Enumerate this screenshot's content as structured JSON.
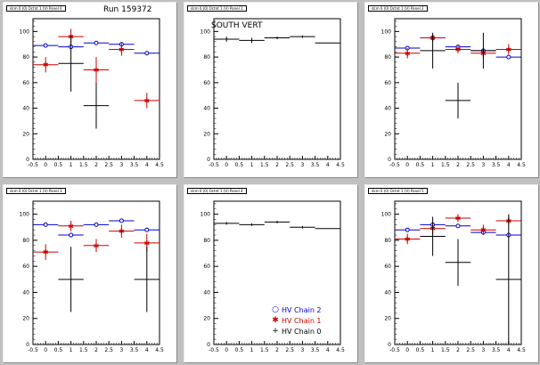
{
  "canvas": {
    "background": "#c0c0c0",
    "colors": {
      "chain2": "#0000cc",
      "chain1": "#cc0000",
      "chain0": "#000000"
    }
  },
  "run_label": "Run 159372",
  "south_vert_label": "SOUTH VERT",
  "legend": {
    "items": [
      {
        "label": "HV Chain 2",
        "marker": "open-circle",
        "color": "#0000cc"
      },
      {
        "label": "HV Chain 1",
        "marker": "star",
        "color": "#cc0000"
      },
      {
        "label": "HV Chain 0",
        "marker": "cross",
        "color": "#000000"
      }
    ]
  },
  "chart_data": [
    {
      "type": "scatter",
      "title": "dcm 0 (0) Octnt 1 (V) Panel 0",
      "xlim": [
        -0.5,
        4.5
      ],
      "ylim": [
        0,
        110
      ],
      "xticks": [
        "-0.5",
        "0",
        "0.5",
        "1",
        "1.5",
        "2",
        "2.5",
        "3",
        "3.5",
        "4",
        "4.5"
      ],
      "yticks": [
        "0",
        "20",
        "40",
        "60",
        "80",
        "100"
      ],
      "series": [
        {
          "color": "#0000cc",
          "marker": "open-circle",
          "points": [
            [
              0,
              89,
              0.5,
              0
            ],
            [
              1,
              88,
              0.5,
              0
            ],
            [
              2,
              91,
              0.5,
              0
            ],
            [
              3,
              90,
              0.5,
              1
            ],
            [
              4,
              83,
              0.5,
              0
            ]
          ]
        },
        {
          "color": "#cc0000",
          "marker": "star",
          "points": [
            [
              0,
              74,
              0.5,
              6
            ],
            [
              1,
              96,
              0.5,
              6
            ],
            [
              2,
              70,
              0.5,
              10
            ],
            [
              3,
              86,
              0.5,
              5
            ],
            [
              4,
              46,
              0.5,
              6
            ]
          ]
        },
        {
          "color": "#000000",
          "marker": "cross",
          "points": [
            [
              1,
              75,
              0.5,
              22
            ],
            [
              2,
              42,
              0.5,
              18
            ]
          ]
        }
      ]
    },
    {
      "type": "scatter",
      "title": "dcm 0 (0) Octnt 1 (V) Panel 1",
      "xlim": [
        -0.5,
        4.5
      ],
      "ylim": [
        0,
        110
      ],
      "xticks": [
        "-0.5",
        "0",
        "0.5",
        "1",
        "1.5",
        "2",
        "2.5",
        "3",
        "3.5",
        "4",
        "4.5"
      ],
      "yticks": [
        "0",
        "20",
        "40",
        "60",
        "80",
        "100"
      ],
      "series": [
        {
          "color": "#000000",
          "marker": "cross",
          "points": [
            [
              0,
              94,
              0.5,
              2
            ],
            [
              1,
              93,
              0.5,
              2
            ],
            [
              2,
              95,
              0.5,
              1
            ],
            [
              3,
              96,
              0.5,
              1
            ],
            [
              4,
              91,
              0.5,
              0
            ]
          ]
        }
      ]
    },
    {
      "type": "scatter",
      "title": "dcm 0 (0) Octnt 1 (V) Panel 2",
      "xlim": [
        -0.5,
        4.5
      ],
      "ylim": [
        0,
        110
      ],
      "xticks": [
        "-0.5",
        "0",
        "0.5",
        "1",
        "1.5",
        "2",
        "2.5",
        "3",
        "3.5",
        "4",
        "4.5"
      ],
      "yticks": [
        "0",
        "20",
        "40",
        "60",
        "80",
        "100"
      ],
      "series": [
        {
          "color": "#0000cc",
          "marker": "open-circle",
          "points": [
            [
              0,
              87,
              0.5,
              0
            ],
            [
              1,
              95,
              0.5,
              0
            ],
            [
              2,
              88,
              0.5,
              0
            ],
            [
              3,
              85,
              0.5,
              0
            ],
            [
              4,
              80,
              0.5,
              0
            ]
          ]
        },
        {
          "color": "#cc0000",
          "marker": "star",
          "points": [
            [
              0,
              83,
              0.5,
              4
            ],
            [
              1,
              95,
              0.5,
              3
            ],
            [
              2,
              86,
              0.5,
              3
            ],
            [
              3,
              83,
              0.5,
              4
            ],
            [
              4,
              86,
              0.5,
              4
            ]
          ]
        },
        {
          "color": "#000000",
          "marker": "cross",
          "points": [
            [
              1,
              85,
              0.5,
              14
            ],
            [
              2,
              46,
              0.5,
              14
            ],
            [
              3,
              85,
              0.5,
              14
            ]
          ]
        }
      ]
    },
    {
      "type": "scatter",
      "title": "dcm 0 (0) Octnt 1 (V) Panel 3",
      "xlim": [
        -0.5,
        4.5
      ],
      "ylim": [
        0,
        110
      ],
      "xticks": [
        "-0.5",
        "0",
        "0.5",
        "1",
        "1.5",
        "2",
        "2.5",
        "3",
        "3.5",
        "4",
        "4.5"
      ],
      "yticks": [
        "0",
        "20",
        "40",
        "60",
        "80",
        "100"
      ],
      "series": [
        {
          "color": "#0000cc",
          "marker": "open-circle",
          "points": [
            [
              0,
              92,
              0.5,
              0
            ],
            [
              1,
              84,
              0.5,
              0
            ],
            [
              2,
              92,
              0.5,
              0
            ],
            [
              3,
              95,
              0.5,
              0
            ],
            [
              4,
              88,
              0.5,
              0
            ]
          ]
        },
        {
          "color": "#cc0000",
          "marker": "star",
          "points": [
            [
              0,
              71,
              0.5,
              6
            ],
            [
              1,
              91,
              0.5,
              4
            ],
            [
              2,
              76,
              0.5,
              5
            ],
            [
              3,
              87,
              0.5,
              5
            ],
            [
              4,
              78,
              0.5,
              7
            ]
          ]
        },
        {
          "color": "#000000",
          "marker": "cross",
          "points": [
            [
              1,
              50,
              0.5,
              25
            ],
            [
              4,
              50,
              0.5,
              25
            ]
          ]
        }
      ]
    },
    {
      "type": "scatter",
      "title": "dcm 0 (0) Octnt 1 (V) Panel 4",
      "xlim": [
        -0.5,
        4.5
      ],
      "ylim": [
        0,
        110
      ],
      "xticks": [
        "-0.5",
        "0",
        "0.5",
        "1",
        "1.5",
        "2",
        "2.5",
        "3",
        "3.5",
        "4",
        "4.5"
      ],
      "yticks": [
        "0",
        "20",
        "40",
        "60",
        "80",
        "100"
      ],
      "series": [
        {
          "color": "#000000",
          "marker": "cross",
          "points": [
            [
              0,
              93,
              0.5,
              1
            ],
            [
              1,
              92,
              0.5,
              1
            ],
            [
              2,
              94,
              0.5,
              1
            ],
            [
              3,
              90,
              0.5,
              1
            ],
            [
              4,
              89,
              0.5,
              0
            ]
          ]
        }
      ]
    },
    {
      "type": "scatter",
      "title": "dcm 0 (0) Octnt 1 (V) Panel 5",
      "xlim": [
        -0.5,
        4.5
      ],
      "ylim": [
        0,
        110
      ],
      "xticks": [
        "-0.5",
        "0",
        "0.5",
        "1",
        "1.5",
        "2",
        "2.5",
        "3",
        "3.5",
        "4",
        "4.5"
      ],
      "yticks": [
        "0",
        "20",
        "40",
        "60",
        "80",
        "100"
      ],
      "series": [
        {
          "color": "#0000cc",
          "marker": "open-circle",
          "points": [
            [
              0,
              88,
              0.5,
              0
            ],
            [
              1,
              92,
              0.5,
              0
            ],
            [
              2,
              91,
              0.5,
              0
            ],
            [
              3,
              86,
              0.5,
              0
            ],
            [
              4,
              84,
              0.5,
              0
            ]
          ]
        },
        {
          "color": "#cc0000",
          "marker": "star",
          "points": [
            [
              0,
              81,
              0.5,
              4
            ],
            [
              1,
              89,
              0.5,
              4
            ],
            [
              2,
              97,
              0.5,
              3
            ],
            [
              3,
              88,
              0.5,
              4
            ],
            [
              4,
              95,
              0.5,
              3
            ]
          ]
        },
        {
          "color": "#000000",
          "marker": "cross",
          "points": [
            [
              1,
              83,
              0.5,
              15
            ],
            [
              2,
              63,
              0.5,
              18
            ],
            [
              4,
              50,
              0.5,
              50
            ]
          ]
        }
      ]
    }
  ]
}
